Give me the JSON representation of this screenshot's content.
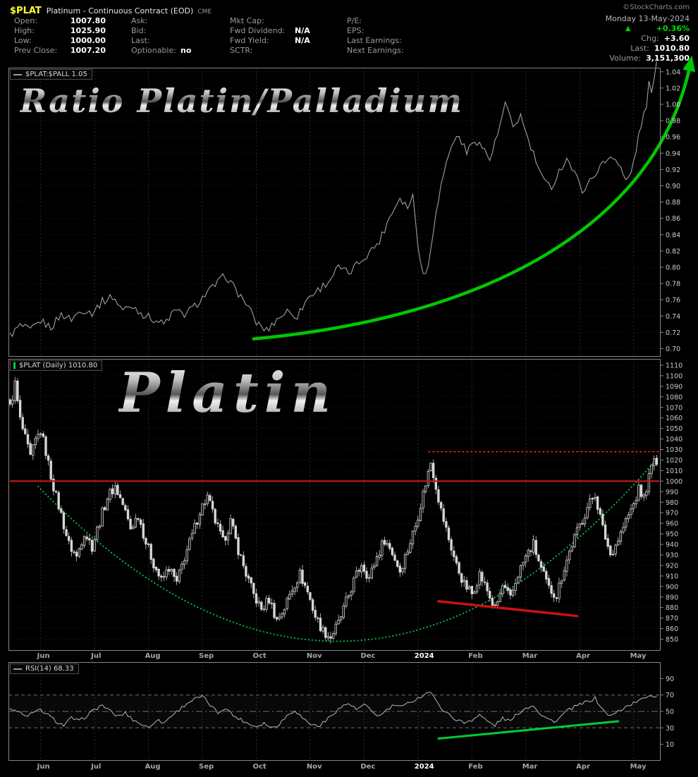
{
  "header": {
    "symbol": "$PLAT",
    "title": "Platinum - Continuous Contract (EOD)",
    "exchange": "CME",
    "site": "©StockCharts.com",
    "date": "Monday 13-May-2024",
    "pct_change": "+0.36%",
    "cols": [
      {
        "rows": [
          {
            "label": "Open:",
            "value": "1007.80"
          },
          {
            "label": "High:",
            "value": "1025.90"
          },
          {
            "label": "Low:",
            "value": "1000.00"
          },
          {
            "label": "Prev Close:",
            "value": "1007.20"
          }
        ]
      },
      {
        "rows": [
          {
            "label": "Ask:",
            "value": ""
          },
          {
            "label": "Bid:",
            "value": ""
          },
          {
            "label": "Last:",
            "value": ""
          },
          {
            "label": "Optionable:",
            "value": "no"
          }
        ]
      },
      {
        "rows": [
          {
            "label": "Mkt Cap:",
            "value": ""
          },
          {
            "label": "Fwd Dividend:",
            "value": "N/A"
          },
          {
            "label": "Fwd Yield:",
            "value": "N/A"
          },
          {
            "label": "SCTR:",
            "value": ""
          }
        ]
      },
      {
        "rows": [
          {
            "label": "P/E:",
            "value": ""
          },
          {
            "label": "EPS:",
            "value": ""
          },
          {
            "label": "Last Earnings:",
            "value": ""
          },
          {
            "label": "Next Earnings:",
            "value": ""
          }
        ]
      }
    ],
    "right": {
      "chg_label": "Chg:",
      "chg": "+3.60",
      "last_label": "Last:",
      "last": "1010.80",
      "vol_label": "Volume:",
      "volume": "3,151,300"
    }
  },
  "watermarks": {
    "ratio": "Ratio  Platin/Palladium",
    "price": "Platin"
  },
  "xaxis": {
    "total_days": 253,
    "year_label": "2024",
    "months": [
      {
        "label": "Jun",
        "day": 12
      },
      {
        "label": "Jul",
        "day": 33
      },
      {
        "label": "Aug",
        "day": 54
      },
      {
        "label": "Sep",
        "day": 75
      },
      {
        "label": "Oct",
        "day": 96
      },
      {
        "label": "Nov",
        "day": 117
      },
      {
        "label": "Dec",
        "day": 138
      },
      {
        "label": "2024",
        "day": 159
      },
      {
        "label": "Feb",
        "day": 180
      },
      {
        "label": "Mar",
        "day": 201
      },
      {
        "label": "Apr",
        "day": 222
      },
      {
        "label": "May",
        "day": 243
      }
    ]
  },
  "chart_data": [
    {
      "type": "line",
      "title": "Platinum / Palladium ratio",
      "legend": "$PLAT:$PALL 1.05",
      "last_value": 1.05,
      "color": "#a0a0a0",
      "ylim": [
        0.69,
        1.045
      ],
      "yticks_range": {
        "min": 0.7,
        "max": 1.04,
        "step": 0.02
      },
      "noise_amp": 0.005,
      "keypoints": [
        [
          0,
          0.716
        ],
        [
          4,
          0.728
        ],
        [
          8,
          0.722
        ],
        [
          12,
          0.734
        ],
        [
          16,
          0.726
        ],
        [
          20,
          0.742
        ],
        [
          24,
          0.736
        ],
        [
          28,
          0.748
        ],
        [
          32,
          0.744
        ],
        [
          36,
          0.758
        ],
        [
          40,
          0.764
        ],
        [
          44,
          0.748
        ],
        [
          48,
          0.752
        ],
        [
          52,
          0.742
        ],
        [
          56,
          0.736
        ],
        [
          60,
          0.73
        ],
        [
          64,
          0.746
        ],
        [
          68,
          0.742
        ],
        [
          72,
          0.752
        ],
        [
          76,
          0.766
        ],
        [
          80,
          0.778
        ],
        [
          84,
          0.79
        ],
        [
          88,
          0.772
        ],
        [
          92,
          0.756
        ],
        [
          96,
          0.732
        ],
        [
          100,
          0.722
        ],
        [
          104,
          0.736
        ],
        [
          108,
          0.746
        ],
        [
          112,
          0.74
        ],
        [
          116,
          0.762
        ],
        [
          120,
          0.772
        ],
        [
          124,
          0.782
        ],
        [
          128,
          0.8
        ],
        [
          132,
          0.792
        ],
        [
          136,
          0.806
        ],
        [
          140,
          0.818
        ],
        [
          144,
          0.832
        ],
        [
          148,
          0.862
        ],
        [
          152,
          0.886
        ],
        [
          155,
          0.874
        ],
        [
          157,
          0.888
        ],
        [
          159,
          0.83
        ],
        [
          161,
          0.79
        ],
        [
          163,
          0.8
        ],
        [
          166,
          0.87
        ],
        [
          169,
          0.915
        ],
        [
          172,
          0.95
        ],
        [
          175,
          0.962
        ],
        [
          178,
          0.94
        ],
        [
          181,
          0.958
        ],
        [
          184,
          0.948
        ],
        [
          187,
          0.932
        ],
        [
          190,
          0.962
        ],
        [
          193,
          1.0
        ],
        [
          196,
          0.972
        ],
        [
          199,
          0.986
        ],
        [
          202,
          0.955
        ],
        [
          205,
          0.93
        ],
        [
          208,
          0.905
        ],
        [
          211,
          0.898
        ],
        [
          214,
          0.918
        ],
        [
          217,
          0.934
        ],
        [
          220,
          0.915
        ],
        [
          223,
          0.895
        ],
        [
          226,
          0.905
        ],
        [
          229,
          0.92
        ],
        [
          232,
          0.93
        ],
        [
          235,
          0.938
        ],
        [
          238,
          0.922
        ],
        [
          240,
          0.905
        ],
        [
          242,
          0.915
        ],
        [
          244,
          0.945
        ],
        [
          246,
          0.975
        ],
        [
          248,
          1.0
        ],
        [
          249,
          1.025
        ],
        [
          250,
          1.012
        ],
        [
          251,
          1.032
        ],
        [
          252,
          1.048
        ]
      ],
      "arrow": {
        "p0": [
          95,
          0.712
        ],
        "c1": [
          185,
          0.738
        ],
        "c2": [
          252,
          0.85
        ],
        "p2": [
          265,
          1.048
        ],
        "color": "#00c800"
      }
    },
    {
      "type": "candlestick",
      "title": "$PLAT daily price",
      "legend": "$PLAT (Daily) 1010.80",
      "last_close": 1010.8,
      "ylim": [
        839,
        1116
      ],
      "yticks_range": {
        "min": 850,
        "max": 1110,
        "step": 10
      },
      "noise_amp": 5,
      "close_keypoints": [
        [
          0,
          1070
        ],
        [
          2,
          1092
        ],
        [
          4,
          1058
        ],
        [
          6,
          1040
        ],
        [
          8,
          1022
        ],
        [
          10,
          1038
        ],
        [
          12,
          1048
        ],
        [
          14,
          1028
        ],
        [
          16,
          1005
        ],
        [
          18,
          985
        ],
        [
          20,
          968
        ],
        [
          23,
          940
        ],
        [
          26,
          928
        ],
        [
          29,
          952
        ],
        [
          32,
          938
        ],
        [
          35,
          962
        ],
        [
          38,
          985
        ],
        [
          41,
          995
        ],
        [
          44,
          978
        ],
        [
          47,
          955
        ],
        [
          50,
          968
        ],
        [
          53,
          942
        ],
        [
          56,
          922
        ],
        [
          59,
          905
        ],
        [
          62,
          918
        ],
        [
          65,
          903
        ],
        [
          68,
          928
        ],
        [
          71,
          948
        ],
        [
          74,
          972
        ],
        [
          77,
          985
        ],
        [
          80,
          962
        ],
        [
          83,
          942
        ],
        [
          86,
          962
        ],
        [
          89,
          935
        ],
        [
          92,
          912
        ],
        [
          95,
          892
        ],
        [
          98,
          878
        ],
        [
          101,
          888
        ],
        [
          104,
          868
        ],
        [
          107,
          880
        ],
        [
          110,
          898
        ],
        [
          113,
          912
        ],
        [
          116,
          895
        ],
        [
          119,
          872
        ],
        [
          122,
          858
        ],
        [
          125,
          852
        ],
        [
          128,
          865
        ],
        [
          131,
          885
        ],
        [
          134,
          905
        ],
        [
          137,
          922
        ],
        [
          140,
          908
        ],
        [
          143,
          928
        ],
        [
          146,
          945
        ],
        [
          149,
          932
        ],
        [
          152,
          915
        ],
        [
          155,
          935
        ],
        [
          158,
          958
        ],
        [
          160,
          978
        ],
        [
          162,
          998
        ],
        [
          164,
          1018
        ],
        [
          166,
          996
        ],
        [
          168,
          972
        ],
        [
          171,
          945
        ],
        [
          174,
          920
        ],
        [
          177,
          902
        ],
        [
          180,
          893
        ],
        [
          183,
          912
        ],
        [
          186,
          896
        ],
        [
          189,
          878
        ],
        [
          192,
          900
        ],
        [
          195,
          888
        ],
        [
          198,
          912
        ],
        [
          201,
          928
        ],
        [
          204,
          940
        ],
        [
          207,
          916
        ],
        [
          210,
          898
        ],
        [
          213,
          892
        ],
        [
          216,
          918
        ],
        [
          219,
          940
        ],
        [
          222,
          958
        ],
        [
          225,
          975
        ],
        [
          228,
          988
        ],
        [
          231,
          955
        ],
        [
          234,
          930
        ],
        [
          237,
          945
        ],
        [
          240,
          962
        ],
        [
          243,
          978
        ],
        [
          245,
          992
        ],
        [
          247,
          984
        ],
        [
          249,
          1004
        ],
        [
          251,
          1022
        ],
        [
          252,
          1011
        ]
      ],
      "annotations": [
        {
          "type": "arc",
          "p0": [
            11,
            995
          ],
          "c": [
            133,
            690
          ],
          "p2": [
            251,
            1018
          ],
          "color": "#00b342"
        },
        {
          "type": "hline",
          "value": 1000,
          "from": 0,
          "to": 253,
          "color": "#bb1a1a",
          "width": 2.2,
          "dash": null
        },
        {
          "type": "hline",
          "value": 1028,
          "from": 163,
          "to": 253,
          "color": "#ee2f00",
          "width": 1.6,
          "dash": "3,3"
        },
        {
          "type": "segment",
          "from": [
            167,
            886
          ],
          "to": [
            221,
            872
          ],
          "color": "#cc1111",
          "width": 3.5
        }
      ]
    },
    {
      "type": "line",
      "title": "RSI(14)",
      "legend": "RSI(14) 68.33",
      "last_value": 68.33,
      "color": "#b8b8b8",
      "ylim": [
        -10,
        110
      ],
      "yticks": [
        10,
        30,
        50,
        70,
        90
      ],
      "noise_amp": 2.2,
      "reflines": [
        {
          "value": 30,
          "style": "dashed"
        },
        {
          "value": 50,
          "style": "dashdot"
        },
        {
          "value": 70,
          "style": "dashed"
        }
      ],
      "keypoints": [
        [
          0,
          55
        ],
        [
          3,
          50
        ],
        [
          6,
          44
        ],
        [
          9,
          48
        ],
        [
          12,
          52
        ],
        [
          15,
          45
        ],
        [
          18,
          38
        ],
        [
          21,
          33
        ],
        [
          24,
          42
        ],
        [
          27,
          38
        ],
        [
          30,
          45
        ],
        [
          33,
          52
        ],
        [
          36,
          58
        ],
        [
          39,
          50
        ],
        [
          42,
          44
        ],
        [
          45,
          48
        ],
        [
          48,
          40
        ],
        [
          51,
          35
        ],
        [
          54,
          30
        ],
        [
          57,
          40
        ],
        [
          60,
          36
        ],
        [
          63,
          45
        ],
        [
          66,
          52
        ],
        [
          69,
          60
        ],
        [
          72,
          65
        ],
        [
          75,
          68
        ],
        [
          78,
          58
        ],
        [
          81,
          48
        ],
        [
          84,
          55
        ],
        [
          87,
          45
        ],
        [
          90,
          40
        ],
        [
          93,
          35
        ],
        [
          96,
          32
        ],
        [
          99,
          36
        ],
        [
          102,
          30
        ],
        [
          105,
          35
        ],
        [
          108,
          45
        ],
        [
          111,
          52
        ],
        [
          114,
          42
        ],
        [
          117,
          35
        ],
        [
          120,
          32
        ],
        [
          123,
          38
        ],
        [
          126,
          48
        ],
        [
          129,
          55
        ],
        [
          132,
          60
        ],
        [
          135,
          52
        ],
        [
          138,
          58
        ],
        [
          141,
          50
        ],
        [
          144,
          44
        ],
        [
          147,
          52
        ],
        [
          150,
          58
        ],
        [
          153,
          55
        ],
        [
          156,
          62
        ],
        [
          159,
          66
        ],
        [
          162,
          72
        ],
        [
          164,
          74
        ],
        [
          166,
          62
        ],
        [
          168,
          55
        ],
        [
          171,
          46
        ],
        [
          174,
          40
        ],
        [
          177,
          36
        ],
        [
          180,
          40
        ],
        [
          183,
          46
        ],
        [
          186,
          38
        ],
        [
          189,
          33
        ],
        [
          192,
          42
        ],
        [
          195,
          38
        ],
        [
          198,
          48
        ],
        [
          201,
          54
        ],
        [
          204,
          58
        ],
        [
          207,
          46
        ],
        [
          210,
          40
        ],
        [
          213,
          38
        ],
        [
          216,
          48
        ],
        [
          219,
          54
        ],
        [
          222,
          58
        ],
        [
          225,
          62
        ],
        [
          228,
          66
        ],
        [
          231,
          52
        ],
        [
          234,
          44
        ],
        [
          237,
          50
        ],
        [
          240,
          56
        ],
        [
          243,
          60
        ],
        [
          246,
          64
        ],
        [
          249,
          70
        ],
        [
          252,
          68.33
        ]
      ],
      "trendline": {
        "from": [
          167,
          17
        ],
        "to": [
          237,
          38
        ],
        "color": "#00cc33"
      }
    }
  ]
}
